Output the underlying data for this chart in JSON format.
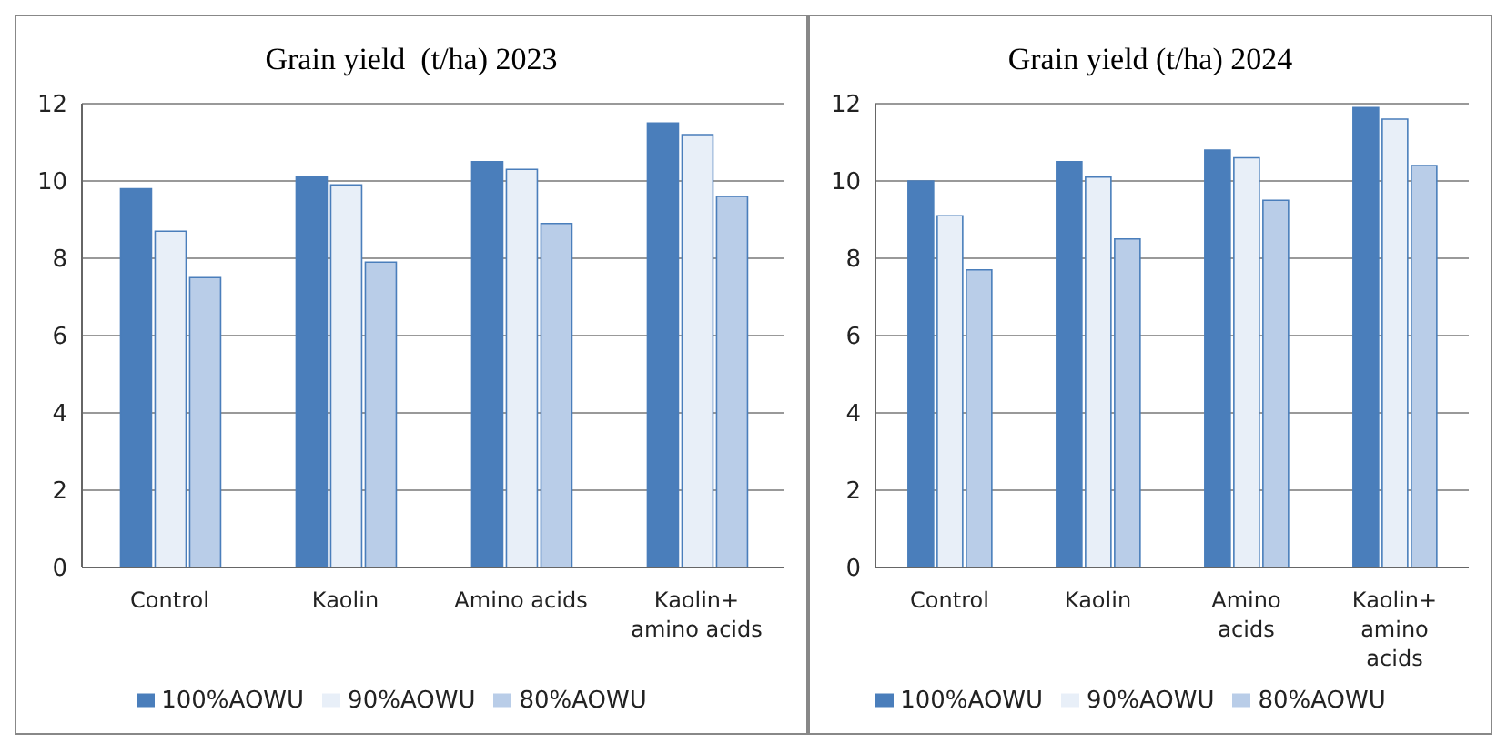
{
  "chart_data": [
    {
      "type": "bar",
      "title": "Grain yield  (t/ha) 2023",
      "categories": [
        "Control",
        "Kaolin",
        "Amino acids",
        "Kaolin+ amino acids"
      ],
      "series": [
        {
          "name": "100%AOWU",
          "color": "#4a7ebb",
          "values": [
            9.8,
            10.1,
            10.5,
            11.5
          ]
        },
        {
          "name": "90%AOWU",
          "color": "#e8eff8",
          "values": [
            8.7,
            9.9,
            10.3,
            11.2
          ]
        },
        {
          "name": "80%AOWU",
          "color": "#b9cde8",
          "values": [
            7.5,
            7.9,
            8.9,
            9.6
          ]
        }
      ],
      "ylim": [
        0,
        12
      ],
      "yticks": [
        0,
        2,
        4,
        6,
        8,
        10,
        12
      ],
      "grid": "y",
      "legend": "bottom"
    },
    {
      "type": "bar",
      "title": "Grain yield (t/ha) 2024",
      "categories": [
        "Control",
        "Kaolin",
        "Amino acids",
        "Kaolin+ amino acids"
      ],
      "series": [
        {
          "name": "100%AOWU",
          "color": "#4a7ebb",
          "values": [
            10.0,
            10.5,
            10.8,
            11.9
          ]
        },
        {
          "name": "90%AOWU",
          "color": "#e8eff8",
          "values": [
            9.1,
            10.1,
            10.6,
            11.6
          ]
        },
        {
          "name": "80%AOWU",
          "color": "#b9cde8",
          "values": [
            7.7,
            8.5,
            9.5,
            10.4
          ]
        }
      ],
      "ylim": [
        0,
        12
      ],
      "yticks": [
        0,
        2,
        4,
        6,
        8,
        10,
        12
      ],
      "grid": "y",
      "legend": "bottom"
    }
  ]
}
